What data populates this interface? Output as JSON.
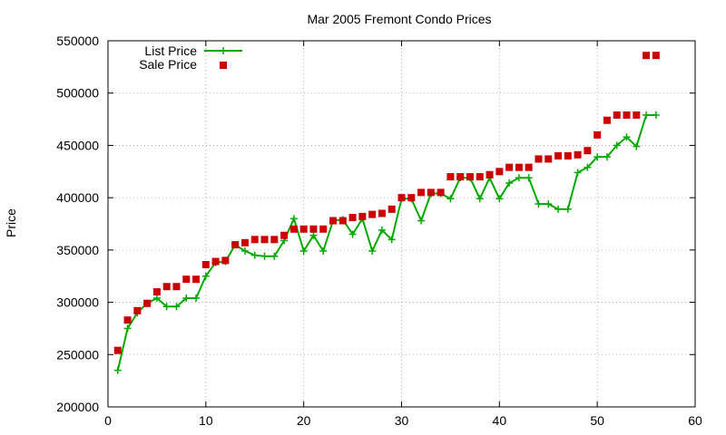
{
  "chart_data": {
    "type": "line",
    "title": "Mar 2005 Fremont Condo Prices",
    "xlabel": "",
    "ylabel": "Price",
    "xlim": [
      0,
      60
    ],
    "ylim": [
      200000,
      550000
    ],
    "xticks": [
      0,
      10,
      20,
      30,
      40,
      50,
      60
    ],
    "yticks": [
      200000,
      250000,
      300000,
      350000,
      400000,
      450000,
      500000,
      550000
    ],
    "grid": true,
    "legend_position": "top-left",
    "series": [
      {
        "name": "List Price",
        "style": "line-with-plus-markers",
        "color": "#00aa00",
        "x": [
          1,
          2,
          3,
          4,
          5,
          6,
          7,
          8,
          9,
          10,
          11,
          12,
          13,
          14,
          15,
          16,
          17,
          18,
          19,
          20,
          21,
          22,
          23,
          24,
          25,
          26,
          27,
          28,
          29,
          30,
          31,
          32,
          33,
          34,
          35,
          36,
          37,
          38,
          39,
          40,
          41,
          42,
          43,
          44,
          45,
          46,
          47,
          48,
          49,
          50,
          51,
          52,
          53,
          54,
          55,
          56
        ],
        "y": [
          235000,
          275000,
          290000,
          299000,
          304000,
          296000,
          296000,
          304000,
          304000,
          325000,
          338000,
          339000,
          355000,
          349000,
          345000,
          344000,
          344000,
          359000,
          380000,
          349000,
          364000,
          349000,
          378000,
          379000,
          365000,
          380000,
          349000,
          369000,
          360000,
          399000,
          399000,
          378000,
          404000,
          404000,
          399000,
          419000,
          419000,
          399000,
          419000,
          399000,
          414000,
          419000,
          419000,
          394000,
          394000,
          389000,
          389000,
          424000,
          429000,
          439000,
          439000,
          450000,
          458000,
          449000,
          479000,
          479000
        ]
      },
      {
        "name": "Sale Price",
        "style": "square-markers",
        "color": "#cc0000",
        "x": [
          1,
          2,
          3,
          4,
          5,
          6,
          7,
          8,
          9,
          10,
          11,
          12,
          13,
          14,
          15,
          16,
          17,
          18,
          19,
          20,
          21,
          22,
          23,
          24,
          25,
          26,
          27,
          28,
          29,
          30,
          31,
          32,
          33,
          34,
          35,
          36,
          37,
          38,
          39,
          40,
          41,
          42,
          43,
          44,
          45,
          46,
          47,
          48,
          49,
          50,
          51,
          52,
          53,
          54,
          55,
          56
        ],
        "y": [
          254000,
          283000,
          292000,
          299000,
          310000,
          315000,
          315000,
          322000,
          322000,
          336000,
          339000,
          340000,
          355000,
          357000,
          360000,
          360000,
          360000,
          364000,
          370000,
          370000,
          370000,
          370000,
          378000,
          378000,
          381000,
          382000,
          384000,
          385000,
          389000,
          400000,
          400000,
          405000,
          405000,
          405000,
          420000,
          420000,
          420000,
          420000,
          422000,
          425000,
          429000,
          429000,
          429000,
          437000,
          437000,
          440000,
          440000,
          441000,
          445000,
          460000,
          474000,
          479000,
          479000,
          479000,
          536000,
          536000
        ]
      }
    ]
  }
}
